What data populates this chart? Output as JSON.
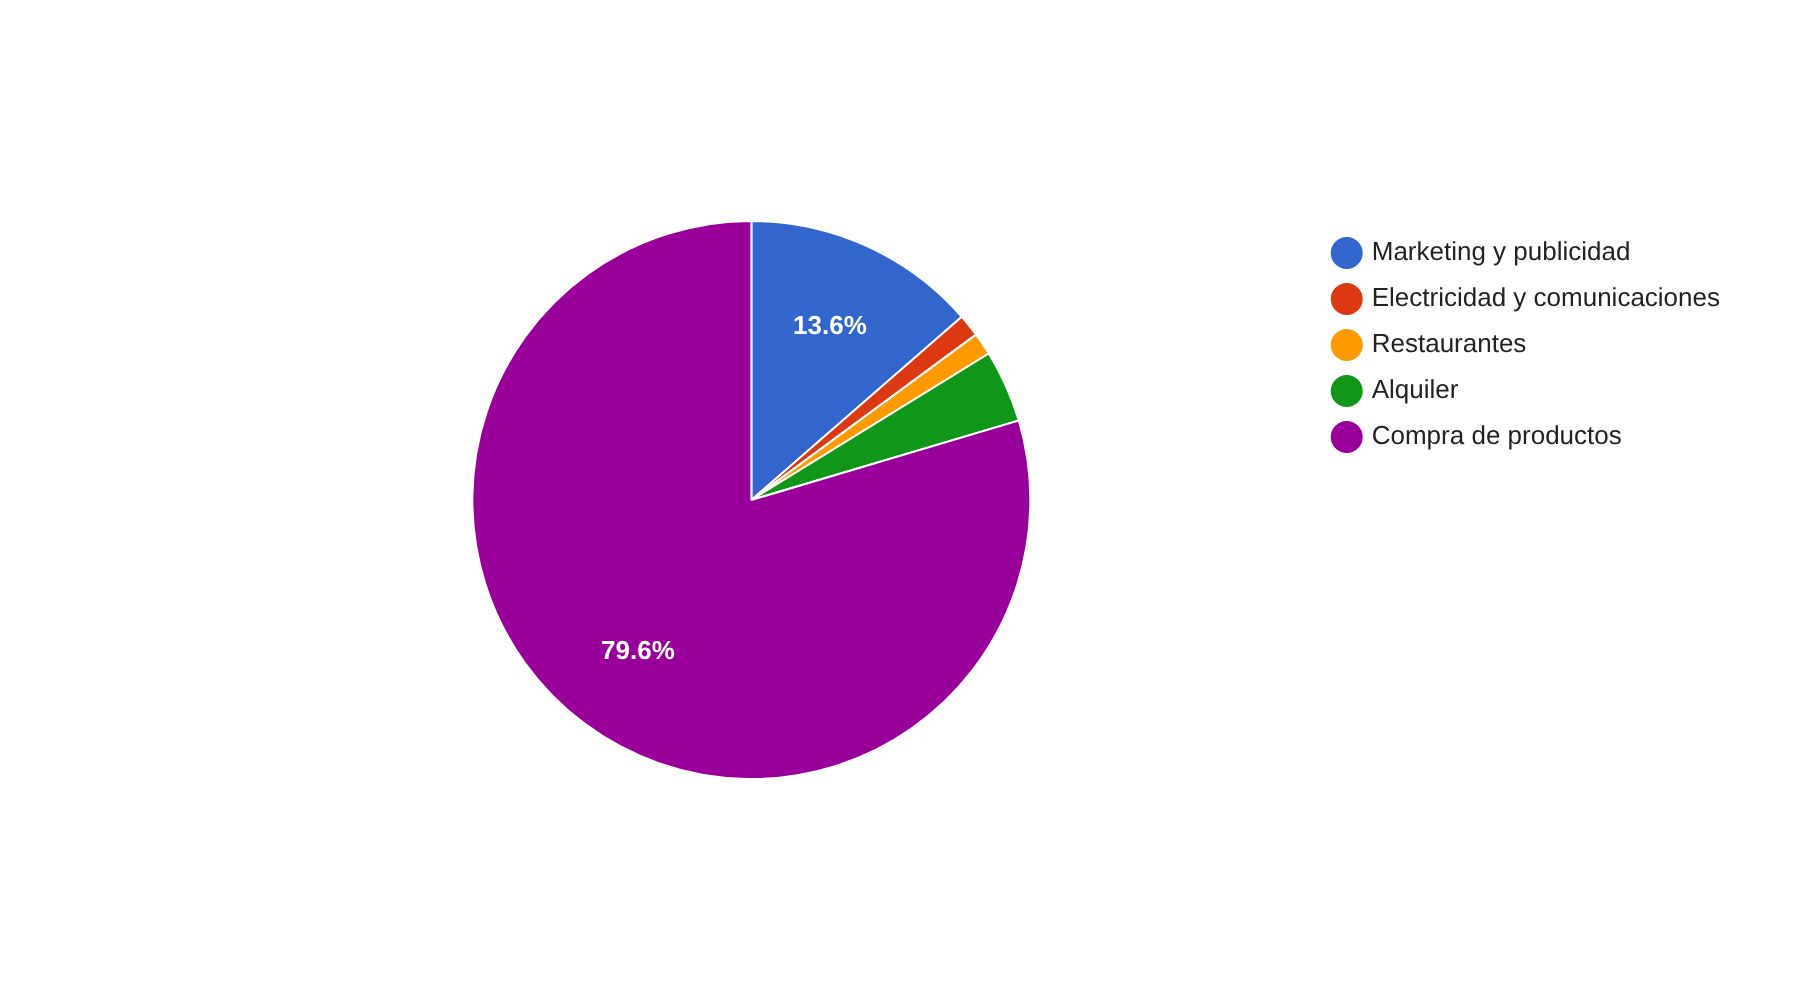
{
  "chart_data": {
    "type": "pie",
    "categories": [
      "Marketing y publicidad",
      "Electricidad y comunicaciones",
      "Restaurantes",
      "Alquiler",
      "Compra de productos"
    ],
    "values": [
      13.6,
      1.3,
      1.3,
      4.2,
      79.6
    ],
    "colors": [
      "#3366cc",
      "#dc3912",
      "#ff9900",
      "#109618",
      "#990099"
    ],
    "value_labels": [
      "13.6%",
      null,
      null,
      null,
      "79.6%"
    ],
    "legend": "right"
  }
}
